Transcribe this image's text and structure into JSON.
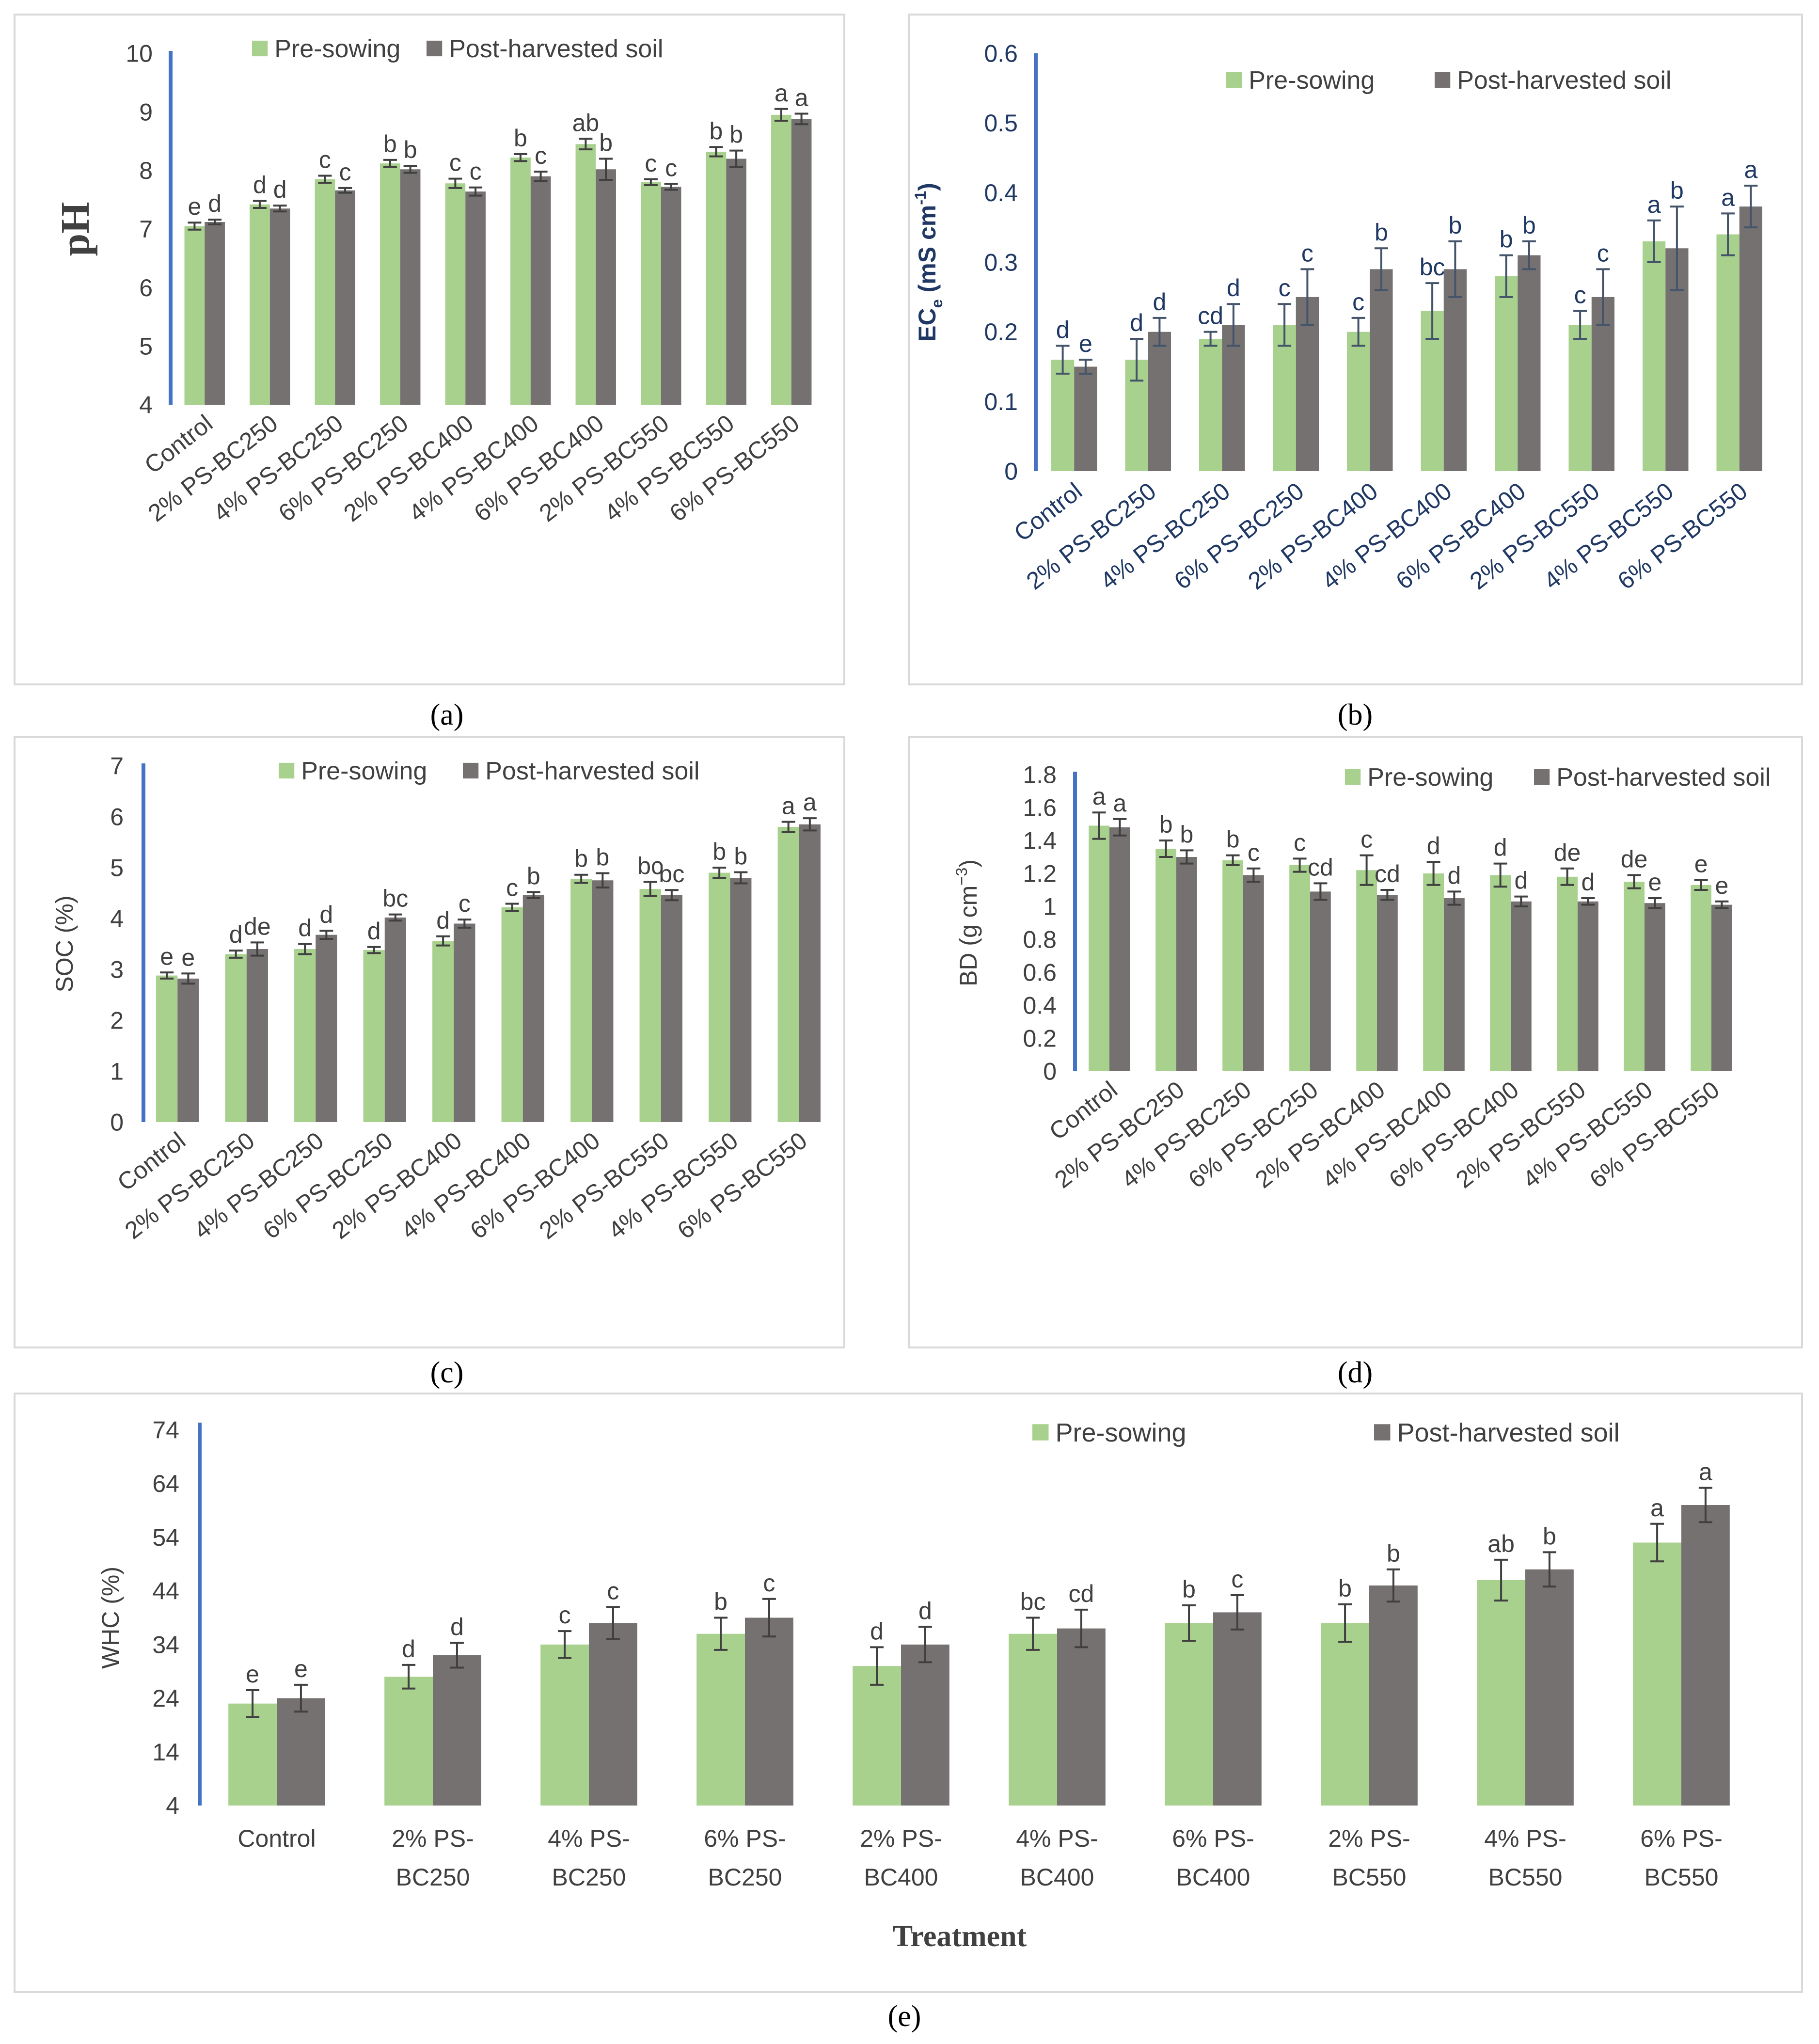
{
  "colors": {
    "pre": "#a9d18e",
    "post": "#767171",
    "axis_line": "#4472c4",
    "panel_border": "#d9d9d9",
    "text": "#404040",
    "err": "#404040",
    "err_b": "#44546a"
  },
  "xlabel": "Treatment",
  "chart_data": [
    {
      "type": "bar",
      "caption": "(a)",
      "ylabel": "pH",
      "ylim": [
        4,
        10
      ],
      "yticks": [
        "4",
        "5",
        "6",
        "7",
        "8",
        "9",
        "10"
      ],
      "legend_position": "top",
      "categories": [
        "Control",
        "2% PS-BC250",
        "4% PS-BC250",
        "6% PS-BC250",
        "2% PS-BC400",
        "4%  PS-BC400",
        "6% PS-BC400",
        "2% PS-BC550",
        "4% PS-BC550",
        "6% PS-BC550"
      ],
      "series": [
        {
          "name": "Pre-sowing",
          "values": [
            7.05,
            7.42,
            7.85,
            8.12,
            7.78,
            8.22,
            8.45,
            7.8,
            8.32,
            8.95
          ],
          "errors": [
            0.06,
            0.06,
            0.06,
            0.06,
            0.08,
            0.06,
            0.09,
            0.05,
            0.08,
            0.1
          ],
          "letters": [
            "e",
            "d",
            "c",
            "b",
            "c",
            "b",
            "ab",
            "c",
            "b",
            "a"
          ]
        },
        {
          "name": "Post-harvested soil",
          "values": [
            7.12,
            7.35,
            7.66,
            8.02,
            7.64,
            7.9,
            8.02,
            7.72,
            8.2,
            8.88
          ],
          "errors": [
            0.04,
            0.05,
            0.04,
            0.06,
            0.07,
            0.08,
            0.18,
            0.05,
            0.14,
            0.09
          ],
          "letters": [
            "d",
            "d",
            "c",
            "b",
            "c",
            "c",
            "b",
            "c",
            "b",
            "a"
          ]
        }
      ]
    },
    {
      "type": "bar",
      "caption": "(b)",
      "ylabel": "EC",
      "ylabel_sub": "e",
      "ylabel_unit": " (mS cm",
      "ylabel_sup": "-1",
      "ylabel_close": ")",
      "ylim": [
        0,
        0.6
      ],
      "yticks": [
        "0",
        "0.1",
        "0.2",
        "0.3",
        "0.4",
        "0.5",
        "0.6"
      ],
      "legend_position": "top-right",
      "categories": [
        "Control",
        "2% PS-BC250",
        "4% PS-BC250",
        "6% PS-BC250",
        "2% PS-BC400",
        "4%  PS-BC400",
        "6% PS-BC400",
        "2% PS-BC550",
        "4% PS-BC550",
        "6% PS-BC550"
      ],
      "series": [
        {
          "name": "Pre-sowing",
          "values": [
            0.16,
            0.16,
            0.19,
            0.21,
            0.2,
            0.23,
            0.28,
            0.21,
            0.33,
            0.34
          ],
          "errors": [
            0.02,
            0.03,
            0.01,
            0.03,
            0.02,
            0.04,
            0.03,
            0.02,
            0.03,
            0.03
          ],
          "letters": [
            "d",
            "d",
            "cd",
            "c",
            "c",
            "bc",
            "b",
            "c",
            "a",
            "a"
          ]
        },
        {
          "name": "Post-harvested soil",
          "values": [
            0.15,
            0.2,
            0.21,
            0.25,
            0.29,
            0.29,
            0.31,
            0.25,
            0.32,
            0.38
          ],
          "errors": [
            0.01,
            0.02,
            0.03,
            0.04,
            0.03,
            0.04,
            0.02,
            0.04,
            0.06,
            0.03
          ],
          "letters": [
            "e",
            "d",
            "d",
            "c",
            "b",
            "b",
            "b",
            "c",
            "b",
            "a"
          ]
        }
      ]
    },
    {
      "type": "bar",
      "caption": "(c)",
      "ylabel": "SOC (%)",
      "ylim": [
        0,
        7
      ],
      "yticks": [
        "0",
        "1",
        "2",
        "3",
        "4",
        "5",
        "6",
        "7"
      ],
      "legend_position": "top",
      "categories": [
        "Control",
        "2% PS-BC250",
        "4% PS-BC250",
        "6% PS-BC250",
        "2% PS-BC400",
        "4%  PS-BC400",
        "6% PS-BC400",
        "2% PS-BC550",
        "4% PS-BC550",
        "6% PS-BC550"
      ],
      "series": [
        {
          "name": "Pre-sowing",
          "values": [
            2.88,
            3.3,
            3.4,
            3.38,
            3.56,
            4.22,
            4.78,
            4.58,
            4.9,
            5.8
          ],
          "errors": [
            0.06,
            0.07,
            0.1,
            0.06,
            0.09,
            0.07,
            0.08,
            0.14,
            0.1,
            0.1
          ],
          "letters": [
            "e",
            "d",
            "d",
            "d",
            "d",
            "c",
            "b",
            "bc",
            "b",
            "a"
          ]
        },
        {
          "name": "Post-harvested soil",
          "values": [
            2.82,
            3.4,
            3.68,
            4.02,
            3.9,
            4.46,
            4.75,
            4.46,
            4.8,
            5.85
          ],
          "errors": [
            0.1,
            0.13,
            0.08,
            0.06,
            0.08,
            0.06,
            0.14,
            0.1,
            0.11,
            0.12
          ],
          "letters": [
            "e",
            "de",
            "d",
            "bc",
            "c",
            "b",
            "b",
            "bc",
            "b",
            "a"
          ]
        }
      ]
    },
    {
      "type": "bar",
      "caption": "(d)",
      "ylabel": "BD (g cm",
      "ylabel_sup": "−3",
      "ylabel_close": ")",
      "ylim": [
        0,
        1.8
      ],
      "yticks": [
        "0",
        "0.2",
        "0.4",
        "0.6",
        "0.8",
        "1",
        "1.2",
        "1.4",
        "1.6",
        "1.8"
      ],
      "legend_position": "top-right",
      "categories": [
        "Control",
        "2% PS-BC250",
        "4% PS-BC250",
        "6% PS-BC250",
        "2% PS-BC400",
        "4%  PS-BC400",
        "6% PS-BC400",
        "2% PS-BC550",
        "4% PS-BC550",
        "6% PS-BC550"
      ],
      "series": [
        {
          "name": "Pre-sowing",
          "values": [
            1.49,
            1.35,
            1.28,
            1.25,
            1.22,
            1.2,
            1.19,
            1.18,
            1.15,
            1.13
          ],
          "errors": [
            0.08,
            0.05,
            0.03,
            0.04,
            0.09,
            0.07,
            0.07,
            0.05,
            0.04,
            0.03
          ],
          "letters": [
            "a",
            "b",
            "b",
            "c",
            "c",
            "d",
            "d",
            "de",
            "de",
            "e"
          ]
        },
        {
          "name": "Post-harvested soil",
          "values": [
            1.48,
            1.3,
            1.19,
            1.09,
            1.07,
            1.05,
            1.03,
            1.03,
            1.02,
            1.01
          ],
          "errors": [
            0.05,
            0.04,
            0.04,
            0.05,
            0.03,
            0.04,
            0.03,
            0.02,
            0.03,
            0.02
          ],
          "letters": [
            "a",
            "b",
            "c",
            "cd",
            "cd",
            "d",
            "d",
            "d",
            "e",
            "e"
          ]
        }
      ]
    },
    {
      "type": "bar",
      "caption": "(e)",
      "ylabel": "WHC (%)",
      "xlabel": "Treatment",
      "ylim": [
        4,
        74
      ],
      "yticks": [
        "4",
        "14",
        "24",
        "34",
        "44",
        "54",
        "64",
        "74"
      ],
      "legend_position": "top-right",
      "categories": [
        "Control",
        "2% PS-BC250",
        "4% PS-BC250",
        "6% PS-BC250",
        "2% PS-BC400",
        "4%  PS-BC400",
        "6% PS-BC400",
        "2% PS-BC550",
        "4% PS-BC550",
        "6% PS-BC550"
      ],
      "category_lines": [
        [
          "Control"
        ],
        [
          "2% PS-",
          "BC250"
        ],
        [
          "4% PS-",
          "BC250"
        ],
        [
          "6% PS-",
          "BC250"
        ],
        [
          "2% PS-",
          "BC400"
        ],
        [
          "4%  PS-",
          "BC400"
        ],
        [
          "6% PS-",
          "BC400"
        ],
        [
          "2% PS-",
          "BC550"
        ],
        [
          "4% PS-",
          "BC550"
        ],
        [
          "6% PS-",
          "BC550"
        ]
      ],
      "series": [
        {
          "name": "Pre-sowing",
          "values": [
            23,
            28,
            34,
            36,
            30,
            36,
            38,
            38,
            46,
            53
          ],
          "errors": [
            2.5,
            2.2,
            2.5,
            3,
            3.5,
            3,
            3.3,
            3.5,
            3.8,
            3.5
          ],
          "letters": [
            "e",
            "d",
            "c",
            "b",
            "d",
            "bc",
            "b",
            "b",
            "ab",
            "a"
          ]
        },
        {
          "name": "Post-harvested soil",
          "values": [
            24,
            32,
            38,
            39,
            34,
            37,
            40,
            45,
            48,
            60
          ],
          "errors": [
            2.5,
            2.3,
            3,
            3.5,
            3.3,
            3.5,
            3.2,
            3,
            3.2,
            3.2
          ],
          "letters": [
            "e",
            "d",
            "c",
            "c",
            "d",
            "cd",
            "c",
            "b",
            "b",
            "a"
          ]
        }
      ]
    }
  ]
}
